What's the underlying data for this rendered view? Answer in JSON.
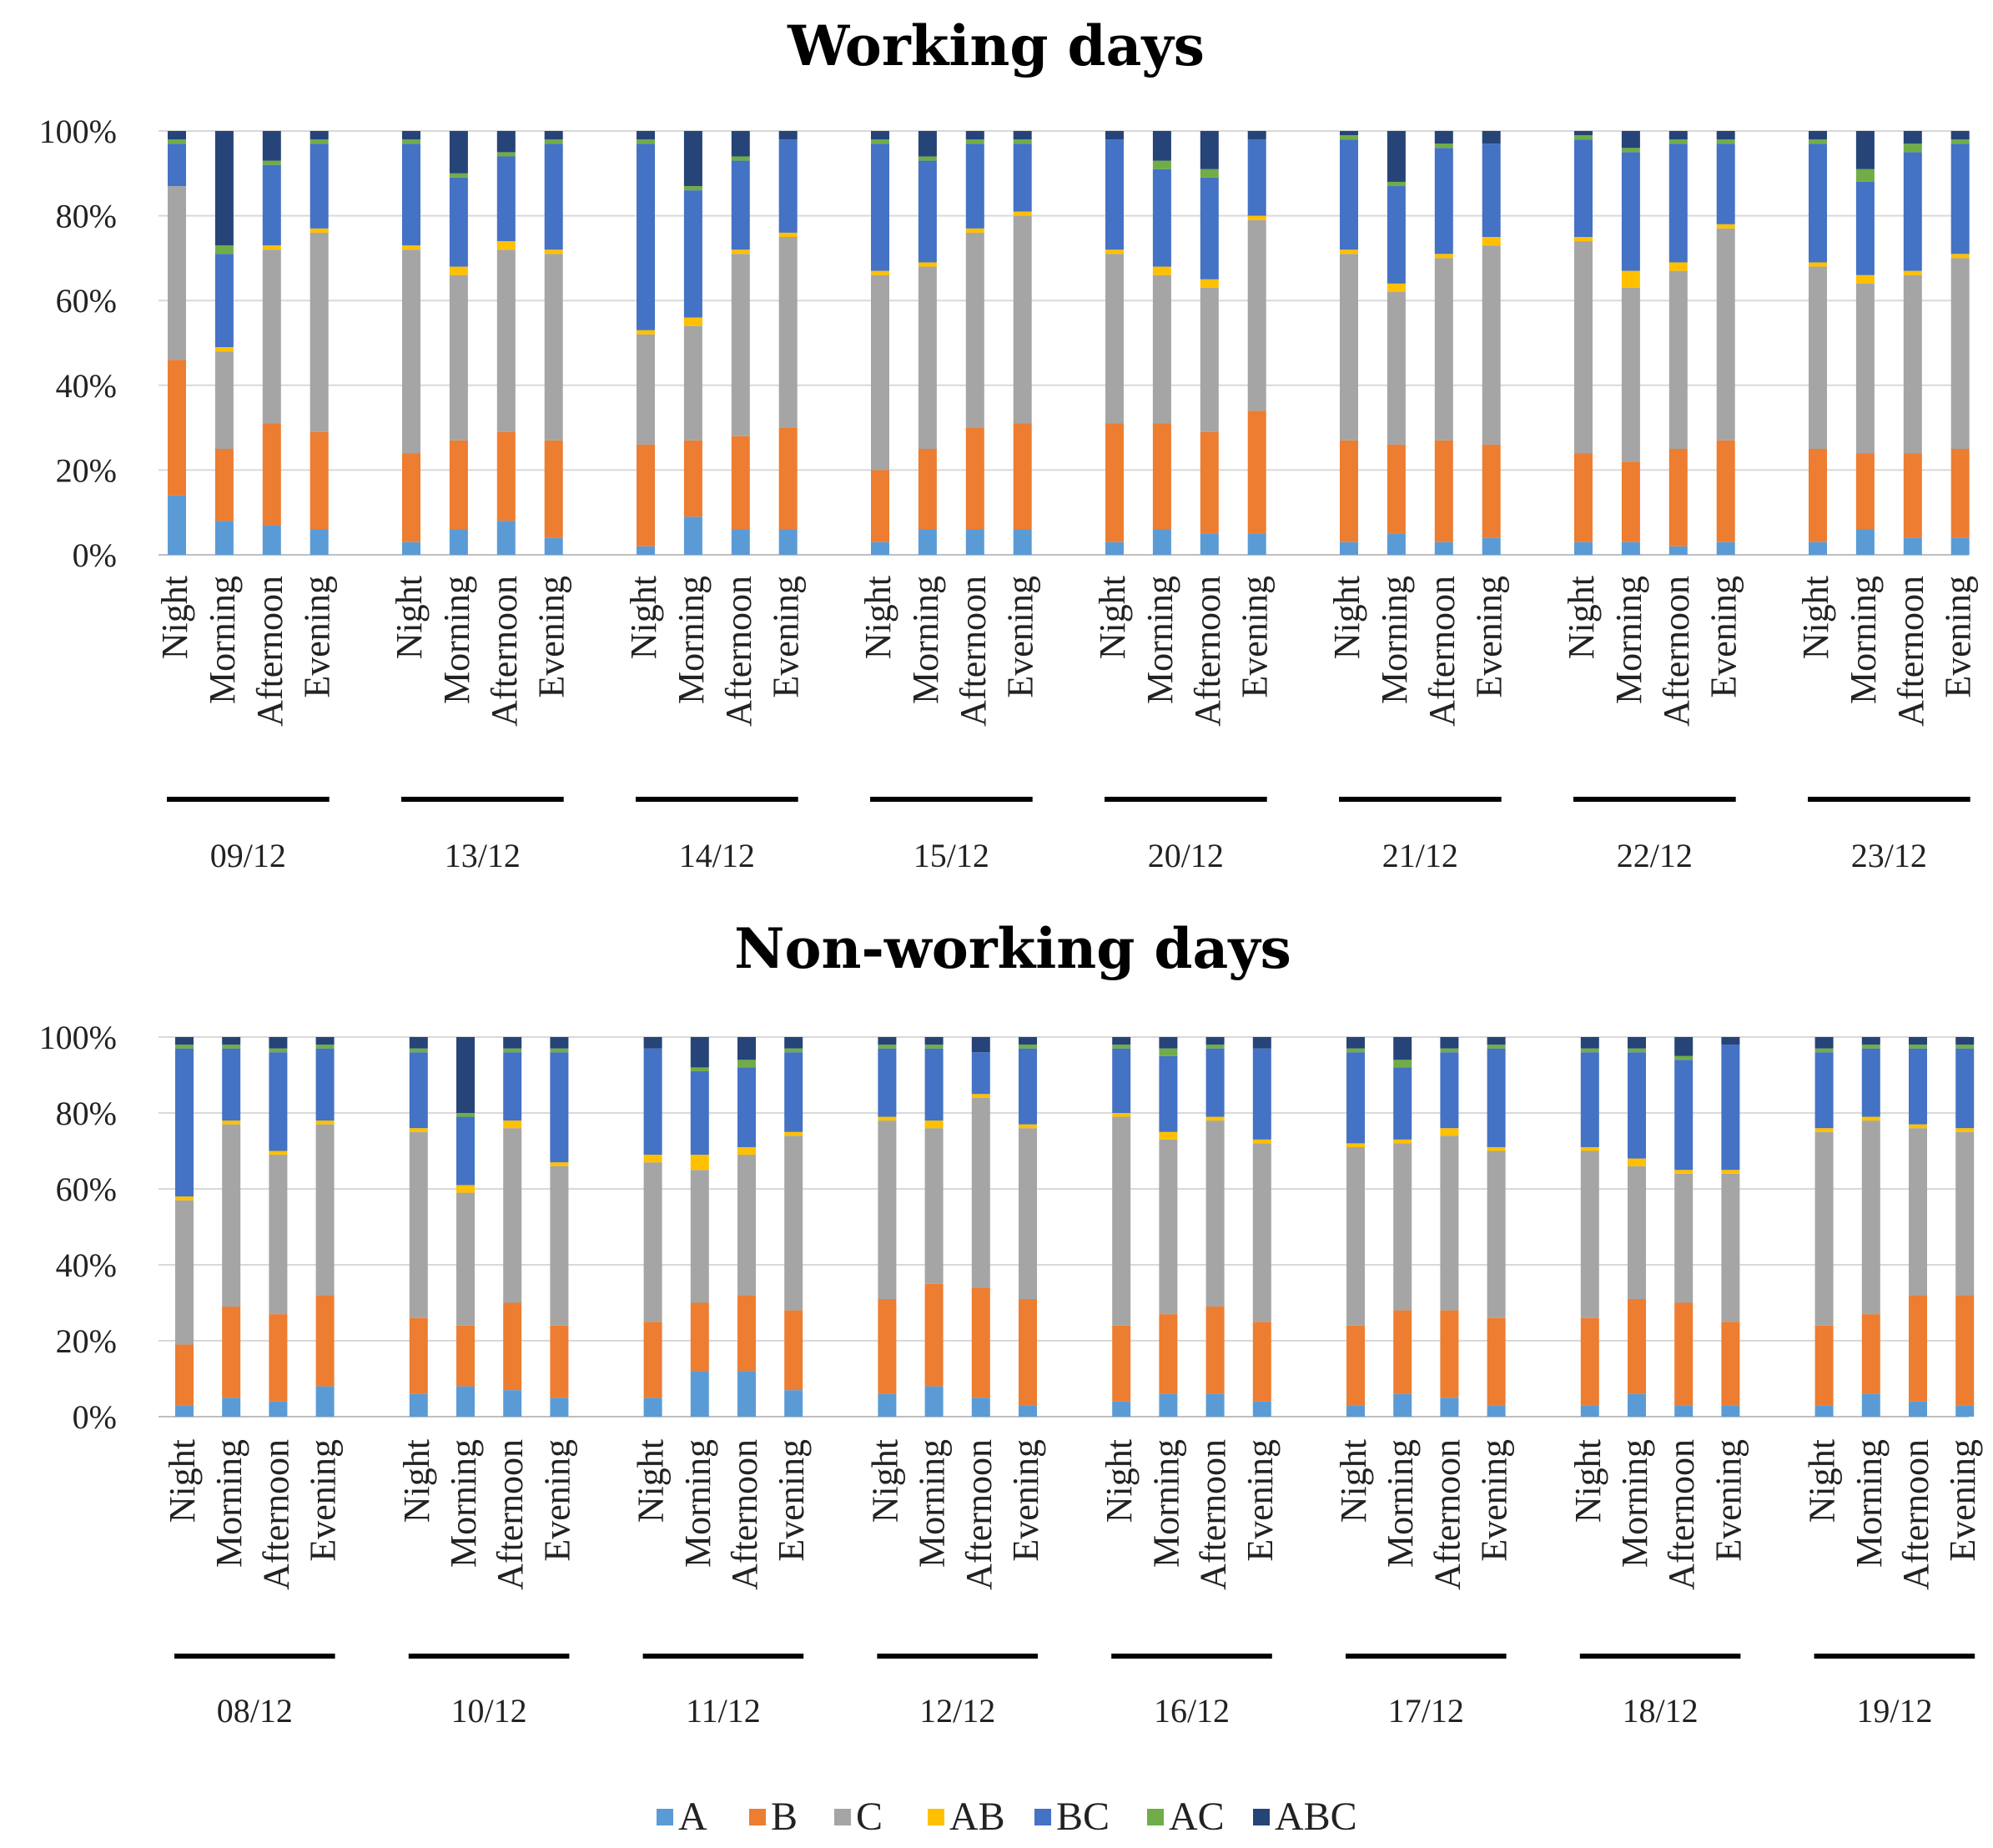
{
  "colors": {
    "A": "#5b9bd5",
    "B": "#ed7d31",
    "C": "#a5a5a5",
    "AB": "#ffc000",
    "BC": "#4472c4",
    "AC": "#70ad47",
    "ABC": "#264478",
    "grid": "#d9d9d9",
    "axis": "#000000"
  },
  "legend": [
    "A",
    "B",
    "C",
    "AB",
    "BC",
    "AC",
    "ABC"
  ],
  "chart_data": [
    {
      "type": "bar",
      "stacked": true,
      "normalized": true,
      "title": "Working days",
      "ylim": [
        0,
        100
      ],
      "yticks": [
        "0%",
        "20%",
        "40%",
        "60%",
        "80%",
        "100%"
      ],
      "categories": [
        "Night",
        "Morning",
        "Afternoon",
        "Evening"
      ],
      "series_names": [
        "A",
        "B",
        "C",
        "AB",
        "BC",
        "AC",
        "ABC"
      ],
      "groups": [
        {
          "label": "09/12",
          "bars": [
            [
              14,
              32,
              41,
              0,
              10,
              1,
              2
            ],
            [
              8,
              17,
              23,
              1,
              22,
              2,
              27
            ],
            [
              7,
              24,
              41,
              1,
              19,
              1,
              7
            ],
            [
              6,
              23,
              47,
              1,
              20,
              1,
              2
            ]
          ]
        },
        {
          "label": "13/12",
          "bars": [
            [
              3,
              21,
              48,
              1,
              24,
              1,
              2
            ],
            [
              6,
              21,
              39,
              2,
              21,
              1,
              10
            ],
            [
              8,
              21,
              43,
              2,
              20,
              1,
              5
            ],
            [
              4,
              23,
              44,
              1,
              25,
              1,
              2
            ]
          ]
        },
        {
          "label": "14/12",
          "bars": [
            [
              2,
              24,
              26,
              1,
              44,
              1,
              2
            ],
            [
              9,
              18,
              27,
              2,
              30,
              1,
              13
            ],
            [
              6,
              22,
              43,
              1,
              21,
              1,
              6
            ],
            [
              6,
              24,
              45,
              1,
              22,
              0,
              2
            ]
          ]
        },
        {
          "label": "15/12",
          "bars": [
            [
              3,
              17,
              46,
              1,
              30,
              1,
              2
            ],
            [
              6,
              19,
              43,
              1,
              24,
              1,
              6
            ],
            [
              6,
              24,
              46,
              1,
              20,
              1,
              2
            ],
            [
              6,
              25,
              49,
              1,
              16,
              1,
              2
            ]
          ]
        },
        {
          "label": "20/12",
          "bars": [
            [
              3,
              28,
              40,
              1,
              26,
              0,
              2
            ],
            [
              6,
              25,
              35,
              2,
              23,
              2,
              7
            ],
            [
              5,
              24,
              34,
              2,
              24,
              2,
              9
            ],
            [
              5,
              29,
              45,
              1,
              18,
              0,
              2
            ]
          ]
        },
        {
          "label": "21/12",
          "bars": [
            [
              3,
              24,
              44,
              1,
              26,
              1,
              1
            ],
            [
              5,
              21,
              36,
              2,
              23,
              1,
              12
            ],
            [
              3,
              24,
              43,
              1,
              25,
              1,
              3
            ],
            [
              4,
              22,
              47,
              2,
              22,
              0,
              3
            ]
          ]
        },
        {
          "label": "22/12",
          "bars": [
            [
              3,
              21,
              50,
              1,
              23,
              1,
              1
            ],
            [
              3,
              19,
              41,
              4,
              28,
              1,
              4
            ],
            [
              2,
              23,
              42,
              2,
              28,
              1,
              2
            ],
            [
              3,
              24,
              50,
              1,
              19,
              1,
              2
            ]
          ]
        },
        {
          "label": "23/12",
          "bars": [
            [
              3,
              22,
              43,
              1,
              28,
              1,
              2
            ],
            [
              6,
              18,
              40,
              2,
              22,
              3,
              9
            ],
            [
              4,
              20,
              42,
              1,
              28,
              2,
              3
            ],
            [
              4,
              21,
              45,
              1,
              26,
              1,
              2
            ]
          ]
        }
      ]
    },
    {
      "type": "bar",
      "stacked": true,
      "normalized": true,
      "title": "Non-working days",
      "ylim": [
        0,
        100
      ],
      "yticks": [
        "0%",
        "20%",
        "40%",
        "60%",
        "80%",
        "100%"
      ],
      "categories": [
        "Night",
        "Morning",
        "Afternoon",
        "Evening"
      ],
      "series_names": [
        "A",
        "B",
        "C",
        "AB",
        "BC",
        "AC",
        "ABC"
      ],
      "groups": [
        {
          "label": "08/12",
          "bars": [
            [
              3,
              16,
              38,
              1,
              39,
              1,
              2
            ],
            [
              5,
              24,
              48,
              1,
              19,
              1,
              2
            ],
            [
              4,
              23,
              42,
              1,
              26,
              1,
              3
            ],
            [
              8,
              24,
              45,
              1,
              19,
              1,
              2
            ]
          ]
        },
        {
          "label": "10/12",
          "bars": [
            [
              6,
              20,
              49,
              1,
              20,
              1,
              3
            ],
            [
              8,
              16,
              35,
              2,
              18,
              1,
              20
            ],
            [
              7,
              23,
              46,
              2,
              18,
              1,
              3
            ],
            [
              5,
              19,
              42,
              1,
              29,
              1,
              3
            ]
          ]
        },
        {
          "label": "11/12",
          "bars": [
            [
              5,
              20,
              42,
              2,
              28,
              0,
              3
            ],
            [
              12,
              18,
              35,
              4,
              22,
              1,
              8
            ],
            [
              12,
              20,
              37,
              2,
              21,
              2,
              6
            ],
            [
              7,
              21,
              46,
              1,
              21,
              1,
              3
            ]
          ]
        },
        {
          "label": "12/12",
          "bars": [
            [
              6,
              25,
              47,
              1,
              18,
              1,
              2
            ],
            [
              8,
              27,
              41,
              2,
              19,
              1,
              2
            ],
            [
              5,
              29,
              50,
              1,
              11,
              0,
              4
            ],
            [
              3,
              28,
              45,
              1,
              20,
              1,
              2
            ]
          ]
        },
        {
          "label": "16/12",
          "bars": [
            [
              4,
              20,
              55,
              1,
              17,
              1,
              2
            ],
            [
              6,
              21,
              46,
              2,
              20,
              2,
              3
            ],
            [
              6,
              23,
              49,
              1,
              18,
              1,
              2
            ],
            [
              4,
              21,
              47,
              1,
              24,
              0,
              3
            ]
          ]
        },
        {
          "label": "17/12",
          "bars": [
            [
              3,
              21,
              47,
              1,
              24,
              1,
              3
            ],
            [
              6,
              22,
              44,
              1,
              19,
              2,
              6
            ],
            [
              5,
              23,
              46,
              2,
              20,
              1,
              3
            ],
            [
              3,
              23,
              44,
              1,
              26,
              1,
              2
            ]
          ]
        },
        {
          "label": "18/12",
          "bars": [
            [
              3,
              23,
              44,
              1,
              25,
              1,
              3
            ],
            [
              6,
              25,
              35,
              2,
              28,
              1,
              3
            ],
            [
              3,
              27,
              34,
              1,
              29,
              1,
              5
            ],
            [
              3,
              22,
              39,
              1,
              33,
              0,
              2
            ]
          ]
        },
        {
          "label": "19/12",
          "bars": [
            [
              3,
              21,
              51,
              1,
              20,
              1,
              3
            ],
            [
              6,
              21,
              51,
              1,
              18,
              1,
              2
            ],
            [
              4,
              28,
              44,
              1,
              20,
              1,
              2
            ],
            [
              3,
              29,
              43,
              1,
              21,
              1,
              2
            ]
          ]
        }
      ]
    }
  ]
}
